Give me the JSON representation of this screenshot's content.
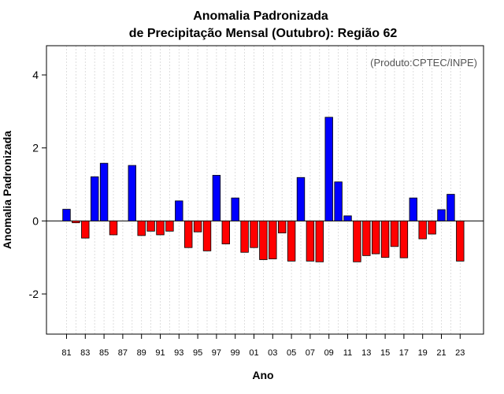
{
  "chart_data": {
    "type": "bar",
    "title_line1": "Anomalia Padronizada",
    "title_line2": "de Precipitação Mensal (Outubro): Região 62",
    "xlabel": "Ano",
    "ylabel": "Anomalia Padronizada",
    "credit": "(Produto:CPTEC/INPE)",
    "ylim": [
      -3.1,
      4.8
    ],
    "yticks": [
      -2,
      0,
      2,
      4
    ],
    "ytick_labels": [
      "-2",
      "0",
      "2",
      "4"
    ],
    "grid": true,
    "positive_color": "#0000ff",
    "negative_color": "#ff0000",
    "categories": [
      "1981",
      "1982",
      "1983",
      "1984",
      "1985",
      "1986",
      "1987",
      "1988",
      "1989",
      "1990",
      "1991",
      "1992",
      "1993",
      "1994",
      "1995",
      "1996",
      "1997",
      "1998",
      "1999",
      "2000",
      "2001",
      "2002",
      "2003",
      "2004",
      "2005",
      "2006",
      "2007",
      "2008",
      "2009",
      "2010",
      "2011",
      "2012",
      "2013",
      "2014",
      "2015",
      "2016",
      "2017",
      "2018",
      "2019",
      "2020",
      "2021",
      "2022",
      "2023"
    ],
    "xtick_labels": [
      "81",
      "83",
      "85",
      "87",
      "89",
      "91",
      "93",
      "95",
      "97",
      "99",
      "01",
      "03",
      "05",
      "07",
      "09",
      "11",
      "13",
      "15",
      "17",
      "19",
      "21",
      "23"
    ],
    "values": [
      0.32,
      -0.05,
      -0.47,
      1.21,
      1.58,
      -0.38,
      0.0,
      1.52,
      -0.4,
      -0.28,
      -0.38,
      -0.28,
      0.55,
      -0.73,
      -0.3,
      -0.82,
      1.25,
      -0.63,
      0.63,
      -0.86,
      -0.73,
      -1.06,
      -1.04,
      -0.33,
      -1.1,
      1.19,
      -1.1,
      -1.12,
      2.84,
      1.07,
      0.14,
      -1.12,
      -0.95,
      -0.9,
      -1.0,
      -0.7,
      -1.01,
      0.63,
      -0.49,
      -0.36,
      0.31,
      0.73,
      -1.1
    ]
  }
}
